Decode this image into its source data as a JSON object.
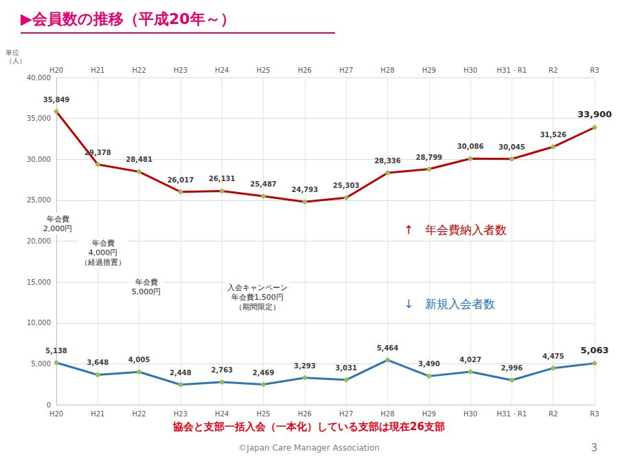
{
  "chart_data": {
    "type": "line",
    "title": "▶会員数の推移（平成20年～）",
    "y_label": "単位\n（人）",
    "categories": [
      "H20",
      "H21",
      "H22",
      "H23",
      "H24",
      "H25",
      "H26",
      "H27",
      "H28",
      "H29",
      "H30",
      "H31・R1",
      "R2",
      "R3"
    ],
    "series": [
      {
        "name": "年会費納入者数",
        "color": "#c00000",
        "marker": "circle",
        "values": [
          35849,
          29378,
          28481,
          26017,
          26131,
          25487,
          24793,
          25303,
          28336,
          28799,
          30086,
          30045,
          31526,
          33900
        ],
        "value_labels": [
          "35,849",
          "29,378",
          "28,481",
          "26,017",
          "26,131",
          "25,487",
          "24,793",
          "25,303",
          "28,336",
          "28,799",
          "30,086",
          "30,045",
          "31,526",
          "33,900"
        ]
      },
      {
        "name": "新規入会者数",
        "color": "#2e75b6",
        "marker": "circle",
        "values": [
          5138,
          3648,
          4005,
          2448,
          2763,
          2469,
          3293,
          3031,
          5464,
          3490,
          4027,
          2996,
          4475,
          5063
        ],
        "value_labels": [
          "5,138",
          "3,648",
          "4,005",
          "2,448",
          "2,763",
          "2,469",
          "3,293",
          "3,031",
          "5,464",
          "3,490",
          "4,027",
          "2,996",
          "4,475",
          "5,063"
        ]
      }
    ],
    "ylim": [
      0,
      40000
    ],
    "yticks": [
      0,
      {
        "value": 5000,
        "label": "5,000"
      },
      {
        "value": 10000,
        "label": "10,000"
      },
      {
        "value": 15000,
        "label": "15,000"
      },
      {
        "value": 20000,
        "label": "20,000"
      },
      {
        "value": 25000,
        "label": "25,000"
      },
      {
        "value": 30000,
        "label": "30,000"
      },
      {
        "value": 35000,
        "label": "35,000"
      },
      {
        "value": 40000,
        "label": "40,000"
      }
    ],
    "grid": true,
    "data_labels": true,
    "annotations": [
      "年会費\n2,000円",
      "年会費\n4,000円\n（経過措置）",
      "年会費\n5,000円",
      "入会キャンペーン\n年会費1,500円\n（期間限定）",
      "↑　年会費納入者数",
      "↓　新規入会者数"
    ]
  },
  "footer": "協会と支部一括入会（一本化）している支部は現在26支部",
  "copyright": "©Japan Care Manager Association",
  "page": "3"
}
